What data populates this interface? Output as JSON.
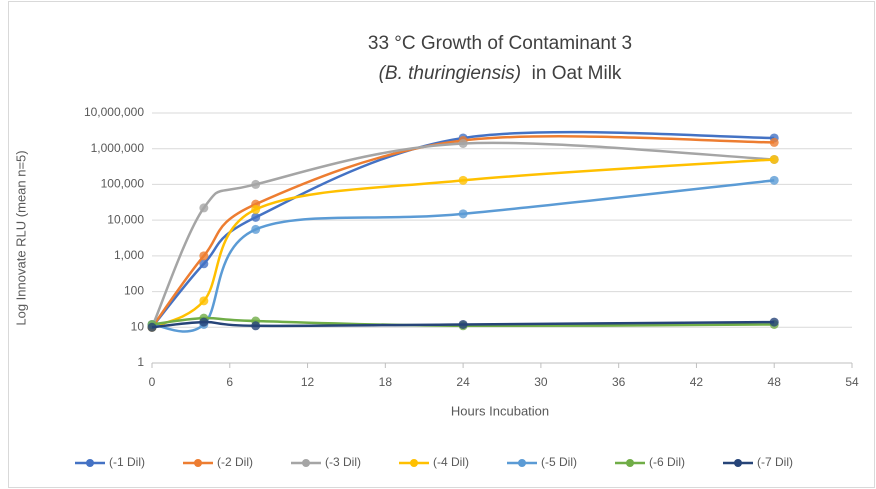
{
  "chart_data": {
    "type": "line",
    "title": "33 °C Growth of Contaminant 3",
    "subtitle": [
      "(B. thuringiensis)",
      "  in Oat Milk"
    ],
    "x_label": "Hours Incubation",
    "y_label": "Log Innovate RLU (mean n=5)",
    "x": [
      0,
      4,
      8,
      24,
      48
    ],
    "xlim": [
      0,
      54
    ],
    "xticks": [
      0,
      6,
      12,
      18,
      24,
      30,
      36,
      42,
      48,
      54
    ],
    "ylim": [
      1,
      10000000
    ],
    "y_scale": "log",
    "yticks": [
      1,
      10,
      100,
      {
        "value": 1000,
        "label": "1,000"
      },
      {
        "value": 10000,
        "label": "10,000"
      },
      {
        "value": 100000,
        "label": "100,000"
      },
      {
        "value": 1000000,
        "label": "1,000,000"
      },
      {
        "value": 10000000,
        "label": "10,000,000"
      }
    ],
    "grid": true,
    "legend": "bottom",
    "smooth": true,
    "series": [
      {
        "name": "(-1 Dil)",
        "color": "#4472c4",
        "values": [
          10,
          600,
          12000,
          2000000,
          2000000
        ]
      },
      {
        "name": "(-2 Dil)",
        "color": "#ed7d31",
        "values": [
          10,
          1000,
          28000,
          1700000,
          1500000
        ]
      },
      {
        "name": "(-3 Dil)",
        "color": "#a5a5a5",
        "values": [
          10,
          22000,
          100000,
          1400000,
          500000
        ]
      },
      {
        "name": "(-4 Dil)",
        "color": "#ffc000",
        "values": [
          10,
          55,
          20000,
          130000,
          500000
        ]
      },
      {
        "name": "(-5 Dil)",
        "color": "#5b9bd5",
        "values": [
          12,
          12,
          5500,
          15000,
          130000
        ]
      },
      {
        "name": "(-6 Dil)",
        "color": "#70ad47",
        "values": [
          12,
          18,
          15,
          11,
          12
        ]
      },
      {
        "name": "(-7 Dil)",
        "color": "#264478",
        "values": [
          10,
          14,
          11,
          12,
          14
        ]
      }
    ]
  }
}
